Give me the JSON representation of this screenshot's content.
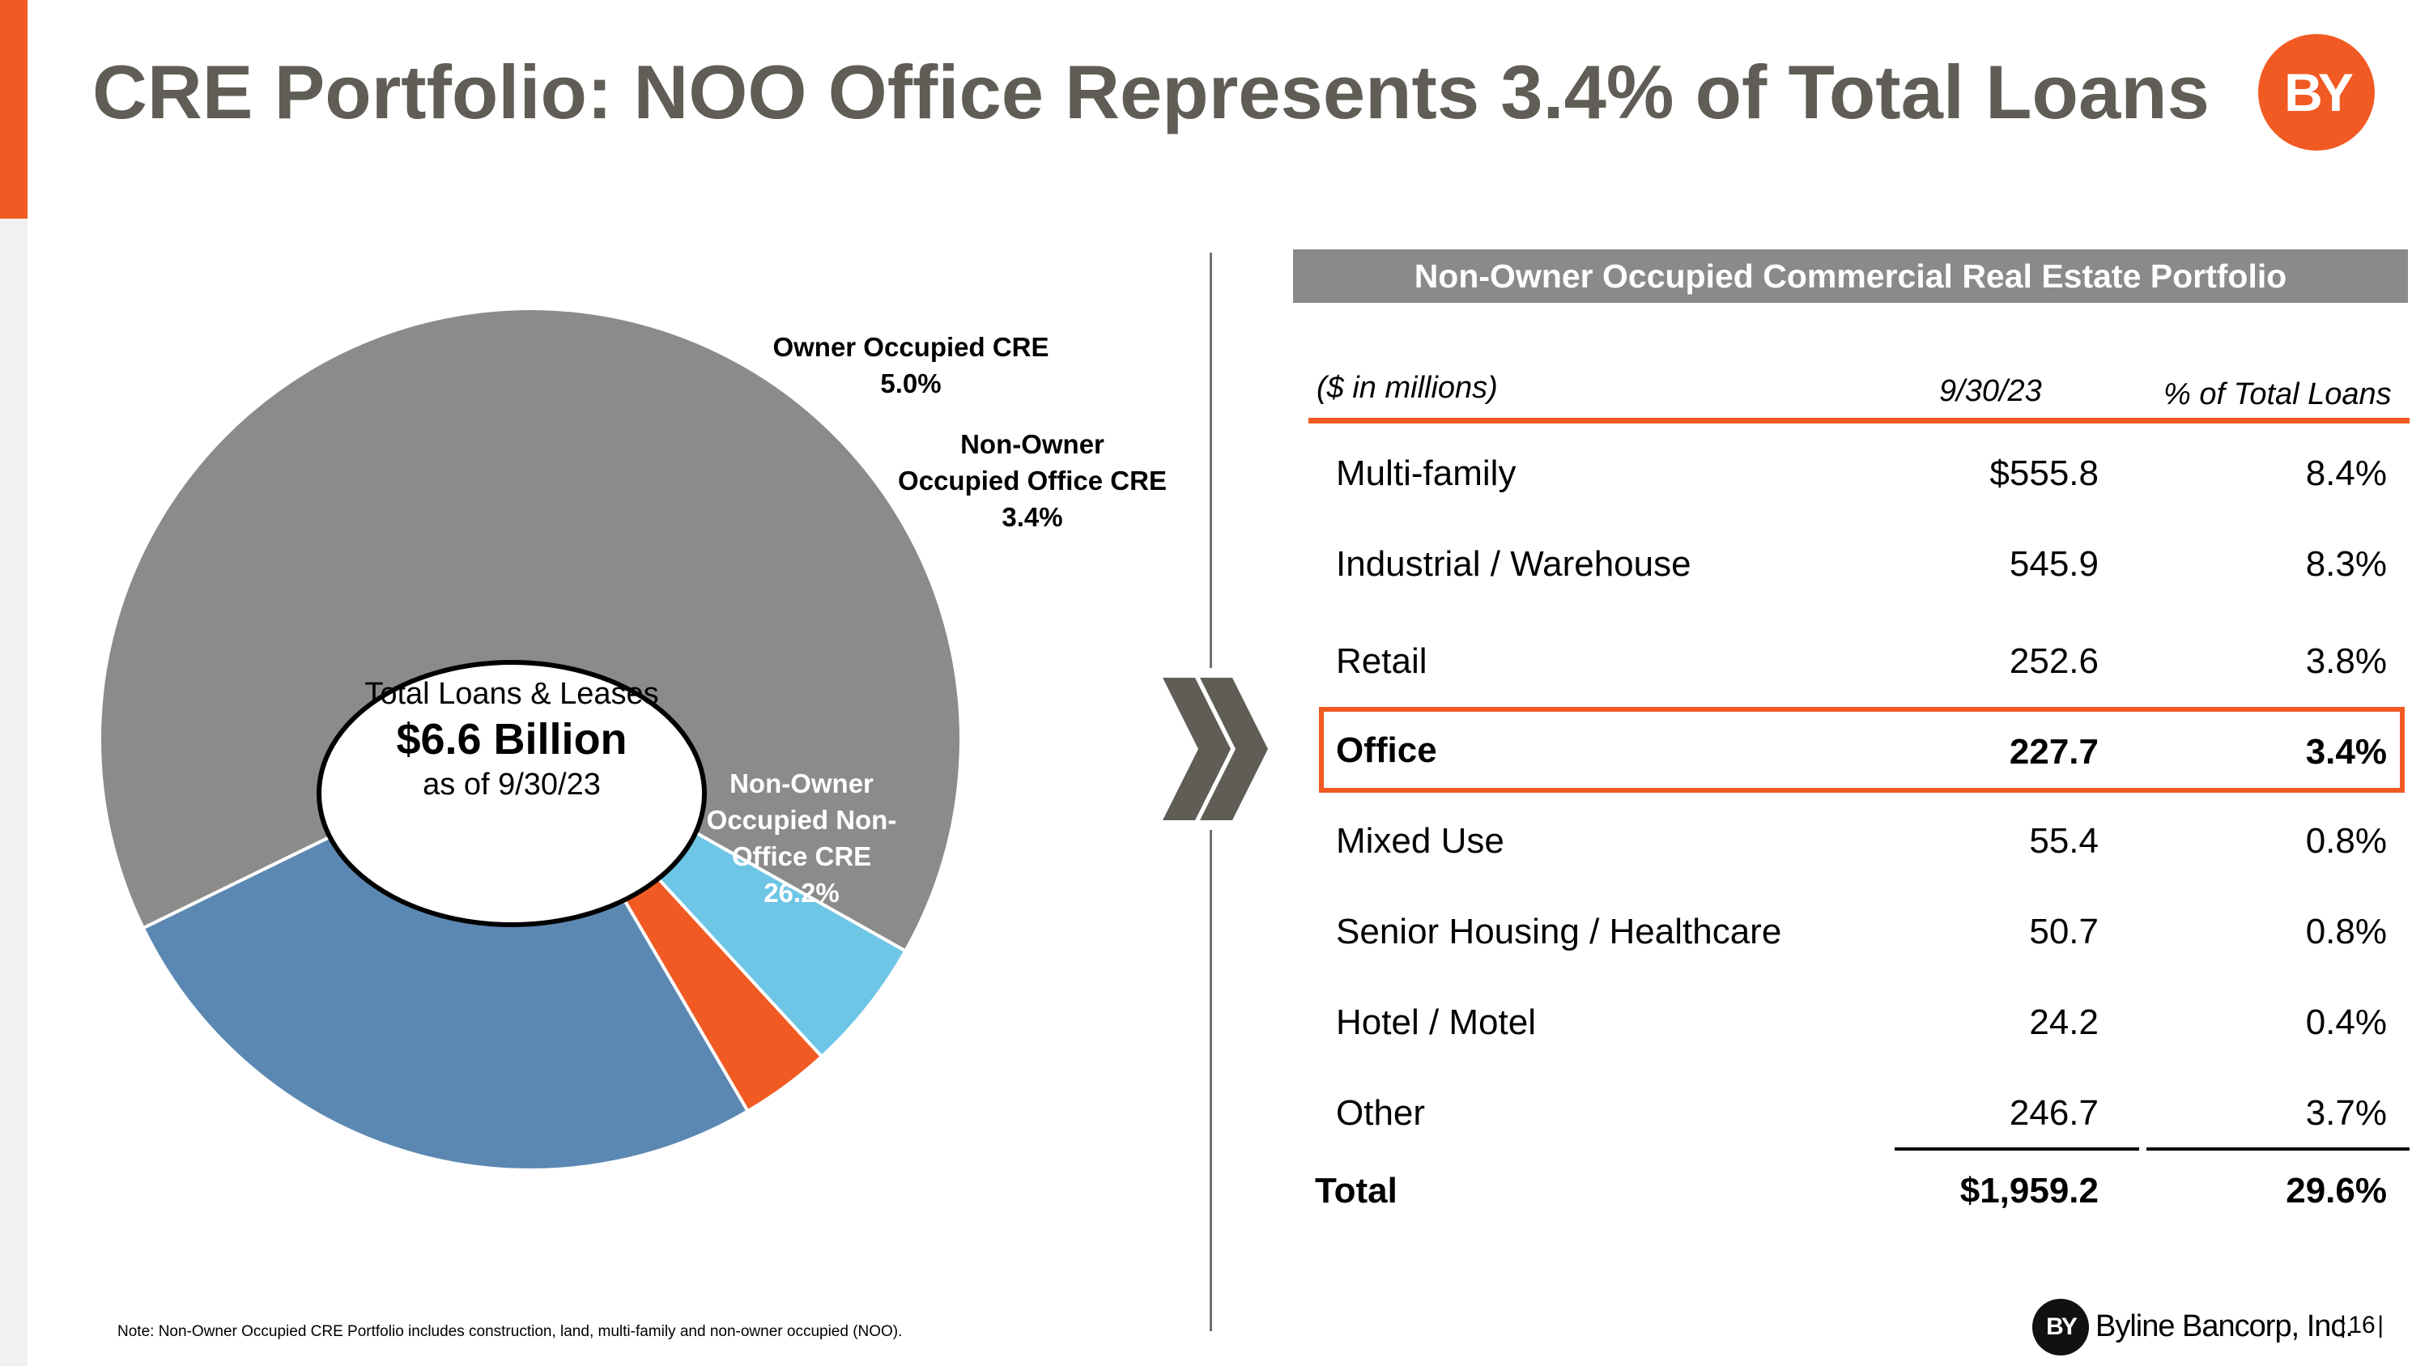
{
  "title": "CRE Portfolio: NOO Office Represents 3.4% of Total Loans",
  "brand": {
    "logo_text": "BY",
    "company_name": "Byline Bancorp, Inc.",
    "page_number": "16",
    "accent_color": "#f15a22"
  },
  "center_text": {
    "line1": "Total Loans & Leases",
    "line2": "$6.6 Billion",
    "line3": "as of 9/30/23"
  },
  "chart_data": [
    {
      "type": "pie",
      "title": "",
      "slices": [
        {
          "label": "",
          "value": 65.4,
          "color": "#8b8c8a"
        },
        {
          "label": "Owner Occupied CRE",
          "value": 5.0,
          "value_label": "5.0%",
          "color": "#6ec6e6"
        },
        {
          "label": "Non-Owner Occupied Office CRE",
          "value": 3.4,
          "value_label": "3.4%",
          "color": "#f15a22"
        },
        {
          "label": "Non-Owner Occupied Non-Office CRE",
          "value": 26.2,
          "value_label": "26.2%",
          "color": "#5b88b2"
        }
      ]
    },
    {
      "type": "table",
      "title": "Non-Owner Occupied Commercial Real Estate Portfolio",
      "columns": [
        "($ in millions)",
        "9/30/23",
        "% of Total Loans"
      ],
      "rows": [
        {
          "label": "Multi-family",
          "value": "$555.8",
          "pct": "8.4%"
        },
        {
          "label": "Industrial / Warehouse",
          "value": "545.9",
          "pct": "8.3%"
        },
        {
          "label": "Retail",
          "value": "252.6",
          "pct": "3.8%"
        },
        {
          "label": "Office",
          "value": "227.7",
          "pct": "3.4%",
          "highlight": true
        },
        {
          "label": "Mixed Use",
          "value": "55.4",
          "pct": "0.8%"
        },
        {
          "label": "Senior Housing / Healthcare",
          "value": "50.7",
          "pct": "0.8%"
        },
        {
          "label": "Hotel / Motel",
          "value": "24.2",
          "pct": "0.4%"
        },
        {
          "label": "Other",
          "value": "246.7",
          "pct": "3.7%"
        }
      ],
      "total": {
        "label": "Total",
        "value": "$1,959.2",
        "pct": "29.6%"
      }
    }
  ],
  "pie_labels": {
    "owner_occupied": {
      "line1": "Owner Occupied CRE",
      "line2": "5.0%"
    },
    "noo_office": {
      "line1": "Non-Owner",
      "line2": "Occupied Office CRE",
      "line3": "3.4%"
    },
    "noo_non_office": {
      "line1": "Non-Owner",
      "line2": "Occupied Non-",
      "line3": "Office CRE",
      "line4": "26.2%"
    }
  },
  "note": "Note: Non-Owner Occupied CRE Portfolio includes construction, land, multi-family and non-owner occupied (NOO)."
}
